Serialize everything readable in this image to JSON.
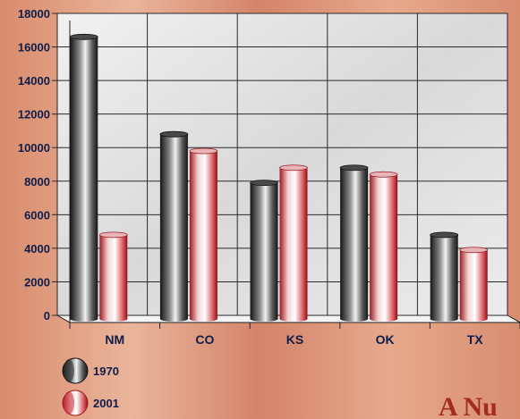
{
  "chart_data": {
    "type": "bar",
    "title": "",
    "xlabel": "",
    "ylabel": "",
    "categories": [
      "NM",
      "CO",
      "KS",
      "OK",
      "TX"
    ],
    "series": [
      {
        "name": "1970",
        "values": [
          16600,
          10800,
          7900,
          8800,
          4800
        ],
        "color": "#3a3a3a"
      },
      {
        "name": "2001",
        "values": [
          4800,
          9800,
          8800,
          8400,
          3900
        ],
        "color": "#c8262d"
      }
    ],
    "ylim": [
      0,
      18000
    ],
    "yticks": [
      0,
      2000,
      4000,
      6000,
      8000,
      10000,
      12000,
      14000,
      16000,
      18000
    ],
    "grid": true,
    "legend": "bottom-left"
  },
  "corner_text": "A Nu",
  "colors": {
    "background": "#d99074",
    "plot_fill": "#e4e4e4",
    "grid": "#2a2a2a",
    "text": "#0f1d4a"
  }
}
